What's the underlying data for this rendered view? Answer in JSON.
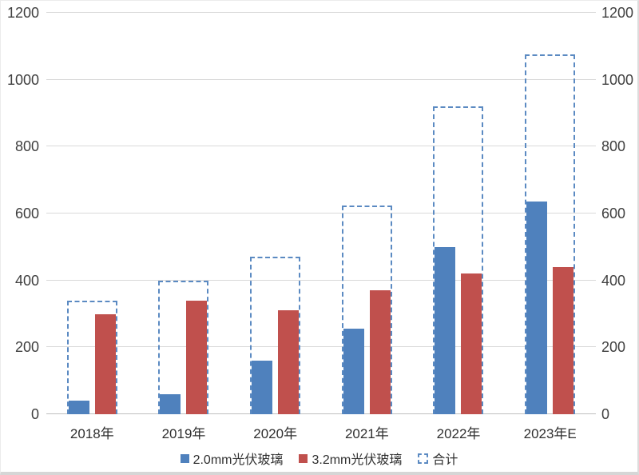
{
  "chart_data": {
    "type": "bar",
    "title": "",
    "xlabel": "",
    "ylabel": "",
    "categories": [
      "2018年",
      "2019年",
      "2020年",
      "2021年",
      "2022年",
      "2023年E"
    ],
    "series": [
      {
        "name": "2.0mm光伏玻璃",
        "type": "bar",
        "color": "#4f81bd",
        "values": [
          40,
          60,
          160,
          255,
          500,
          635
        ]
      },
      {
        "name": "3.2mm光伏玻璃",
        "type": "bar",
        "color": "#c0504d",
        "values": [
          300,
          340,
          310,
          370,
          420,
          440
        ]
      },
      {
        "name": "合计",
        "type": "dashed-outline-total",
        "color": "#5b8ac2",
        "values": [
          340,
          400,
          470,
          625,
          920,
          1075
        ]
      }
    ],
    "ylim": [
      0,
      1200
    ],
    "yticks": [
      0,
      200,
      400,
      600,
      800,
      1000,
      1200
    ],
    "y_axis_sides": [
      "left",
      "right"
    ],
    "grid": true,
    "legend_position": "bottom"
  },
  "colors": {
    "grid": "#d9d9d9",
    "axis_line": "#bfbfbf",
    "tick_text": "#404040",
    "background": "#ffffff"
  }
}
